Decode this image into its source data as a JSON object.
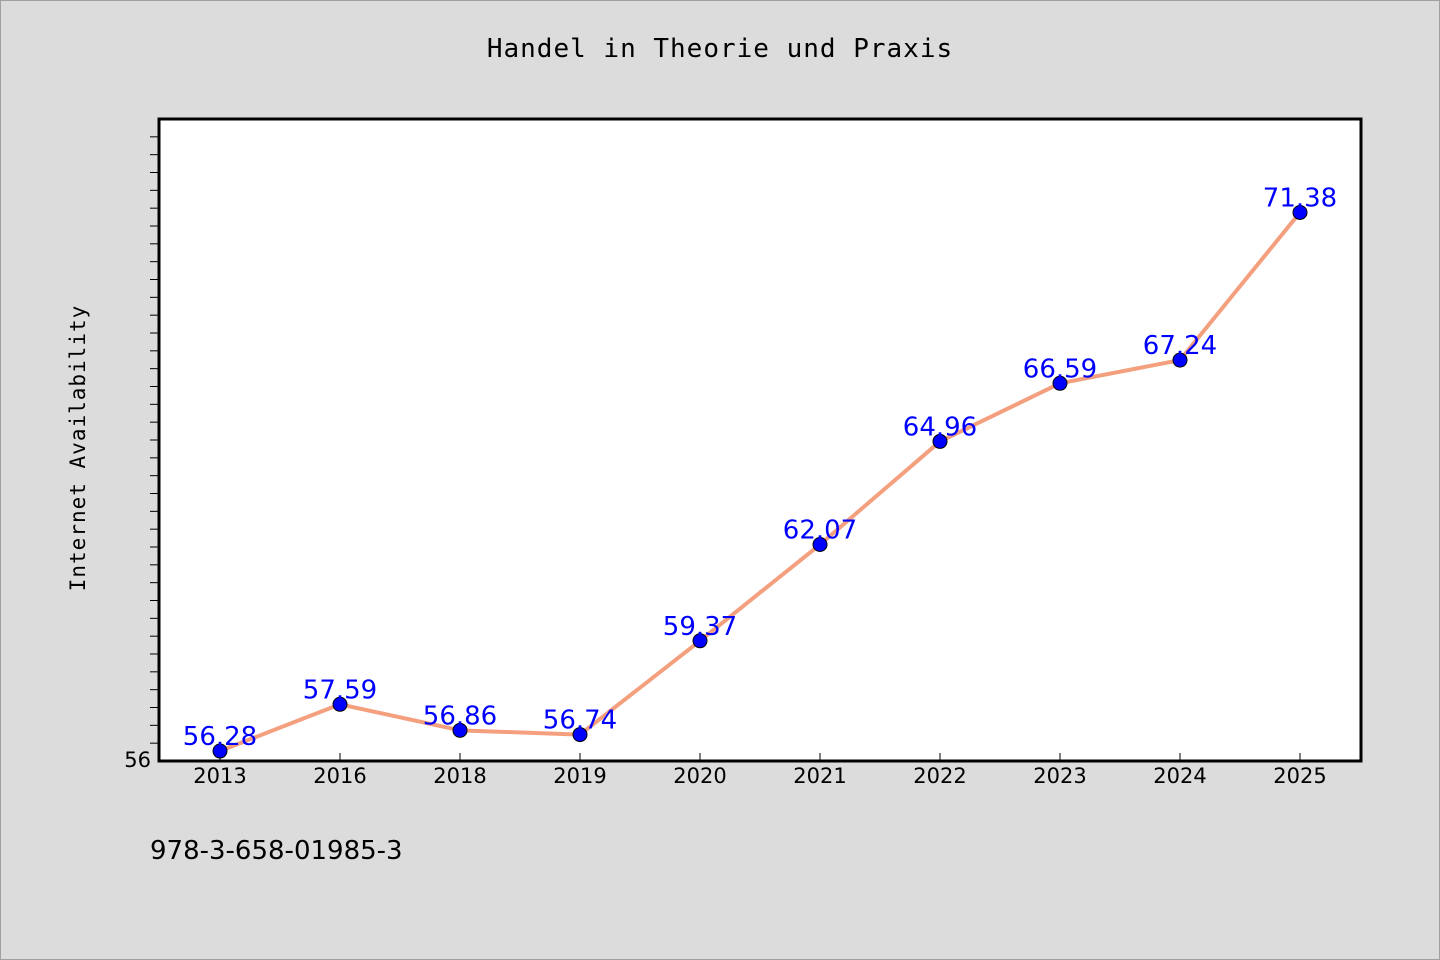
{
  "chart_data": {
    "type": "line",
    "title": "Handel in Theorie und Praxis",
    "ylabel": "Internet Availability",
    "xlabel": "",
    "categories": [
      "2013",
      "2016",
      "2018",
      "2019",
      "2020",
      "2021",
      "2022",
      "2023",
      "2024",
      "2025"
    ],
    "values": [
      56.28,
      57.59,
      56.86,
      56.74,
      59.37,
      62.07,
      64.96,
      66.59,
      67.24,
      71.38
    ],
    "data_labels": [
      "56.28",
      "57.59",
      "56.86",
      "56.74",
      "59.37",
      "62.07",
      "64.96",
      "66.59",
      "67.24",
      "71.38"
    ],
    "ylim": [
      56,
      74
    ],
    "y_tick_labels": [
      "56"
    ],
    "grid": false,
    "line_color": "#f4a07e",
    "marker_color": "#0000ff",
    "label_color": "#0000ff"
  },
  "footer": {
    "isbn": "978-3-658-01985-3"
  }
}
